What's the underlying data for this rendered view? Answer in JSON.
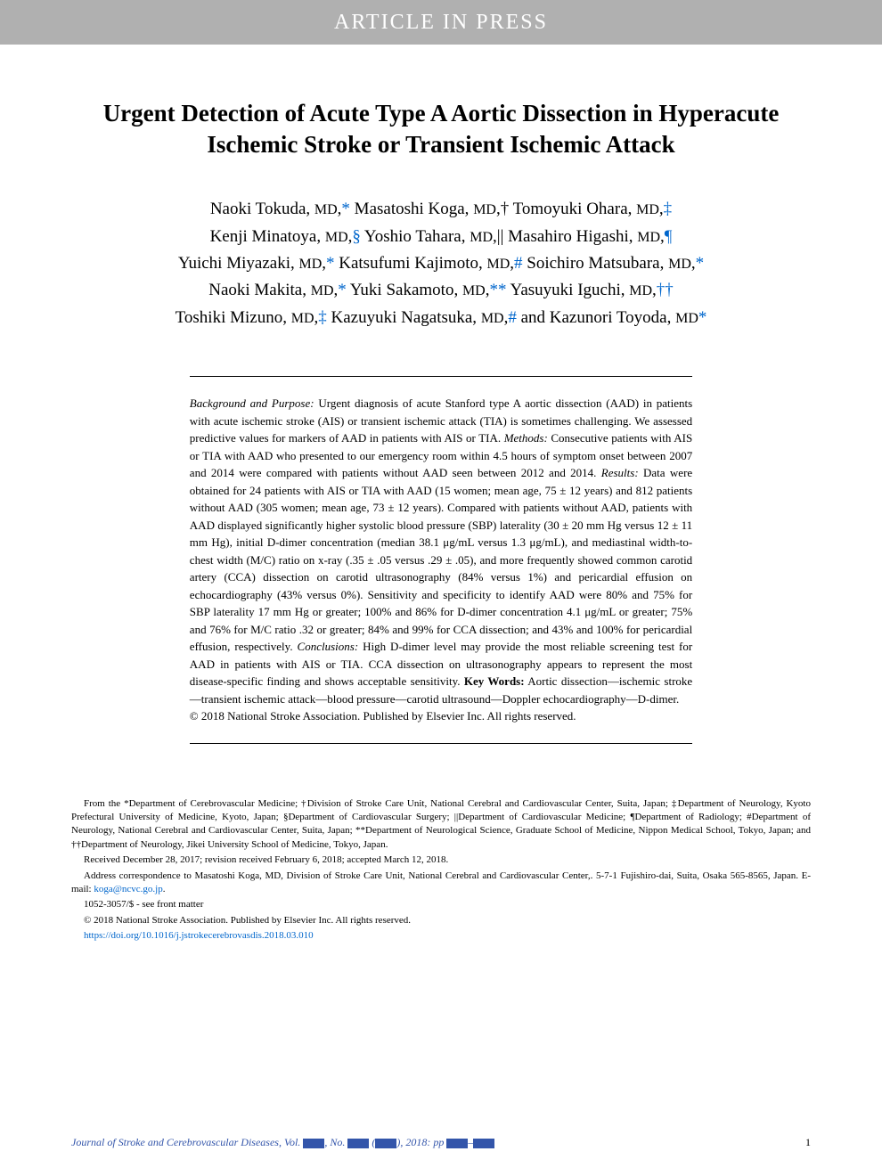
{
  "banner": {
    "text": "ARTICLE IN PRESS"
  },
  "title": "Urgent Detection of Acute Type A Aortic Dissection in Hyperacute Ischemic Stroke or Transient Ischemic Attack",
  "authors_html": "Naoki Tokuda, <span class='sc'>MD</span>,<span class='sym'>*</span> Masatoshi Koga, <span class='sc'>MD</span>,<span class='sym-black'>†</span> Tomoyuki Ohara, <span class='sc'>MD</span>,<span class='sym'>‡</span><br>Kenji Minatoya, <span class='sc'>MD</span>,<span class='sym'>§</span> Yoshio Tahara, <span class='sc'>MD</span>,<span class='sym-black'>||</span> Masahiro Higashi, <span class='sc'>MD</span>,<span class='sym'>¶</span><br>Yuichi Miyazaki, <span class='sc'>MD</span>,<span class='sym'>*</span> Katsufumi Kajimoto, <span class='sc'>MD</span>,<span class='sym'>#</span> Soichiro Matsubara, <span class='sc'>MD</span>,<span class='sym'>*</span><br>Naoki Makita, <span class='sc'>MD</span>,<span class='sym'>*</span> Yuki Sakamoto, <span class='sc'>MD</span>,<span class='sym'>**</span> Yasuyuki Iguchi, <span class='sc'>MD</span>,<span class='sym'>††</span><br>Toshiki Mizuno, <span class='sc'>MD</span>,<span class='sym'>‡</span> Kazuyuki Nagatsuka, <span class='sc'>MD</span>,<span class='sym'>#</span> and Kazunori Toyoda, <span class='sc'>MD</span><span class='sym'>*</span>",
  "abstract": "<span class='italic'>Background and Purpose:</span> Urgent diagnosis of acute Stanford type A aortic dissection (AAD) in patients with acute ischemic stroke (AIS) or transient ischemic attack (TIA) is sometimes challenging. We assessed predictive values for markers of AAD in patients with AIS or TIA. <span class='italic'>Methods:</span> Consecutive patients with AIS or TIA with AAD who presented to our emergency room within 4.5 hours of symptom onset between 2007 and 2014 were compared with patients without AAD seen between 2012 and 2014. <span class='italic'>Results:</span> Data were obtained for 24 patients with AIS or TIA with AAD (15 women; mean age, 75 ± 12 years) and 812 patients without AAD (305 women; mean age, 73 ± 12 years). Compared with patients without AAD, patients with AAD displayed significantly higher systolic blood pressure (SBP) laterality (30 ± 20 mm Hg versus 12 ± 11 mm Hg), initial D-dimer concentration (median 38.1 μg/mL versus 1.3 μg/mL), and mediastinal width-to-chest width (M/C) ratio on x-ray (.35 ± .05 versus .29 ± .05), and more frequently showed common carotid artery (CCA) dissection on carotid ultrasonography (84% versus 1%) and pericardial effusion on echocardiography (43% versus 0%). Sensitivity and specificity to identify AAD were 80% and 75% for SBP laterality 17 mm Hg or greater; 100% and 86% for D-dimer concentration 4.1 μg/mL or greater; 75% and 76% for M/C ratio .32 or greater; 84% and 99% for CCA dissection; and 43% and 100% for pericardial effusion, respectively. <span class='italic'>Conclusions:</span> High D-dimer level may provide the most reliable screening test for AAD in patients with AIS or TIA. CCA dissection on ultrasonography appears to represent the most disease-specific finding and shows acceptable sensitivity. <span class='bold'>Key Words:</span> Aortic dissection—ischemic stroke—transient ischemic attack—blood pressure—carotid ultrasound—Doppler echocardiography—D-dimer.<br>© 2018 National Stroke Association. Published by Elsevier Inc. All rights reserved.",
  "affiliations": "From the *Department of Cerebrovascular Medicine; †Division of Stroke Care Unit, National Cerebral and Cardiovascular Center, Suita, Japan; ‡Department of Neurology, Kyoto Prefectural University of Medicine, Kyoto, Japan; §Department of Cardiovascular Surgery; ||Department of Cardiovascular Medicine; ¶Department of Radiology; #Department of Neurology, National Cerebral and Cardiovascular Center, Suita, Japan; **Department of Neurological Science, Graduate School of Medicine, Nippon Medical School, Tokyo, Japan; and ††Department of Neurology, Jikei University School of Medicine, Tokyo, Japan.",
  "received": "Received December 28, 2017; revision received February 6, 2018; accepted March 12, 2018.",
  "correspondence_prefix": "Address correspondence to Masatoshi Koga, MD, Division of Stroke Care Unit, National Cerebral and Cardiovascular Center,. 5-7-1 Fujishiro-dai, Suita, Osaka 565-8565, Japan. E-mail: ",
  "correspondence_email": "koga@ncvc.go.jp",
  "issn": "1052-3057/$ - see front matter",
  "copyright": "© 2018 National Stroke Association. Published by Elsevier Inc. All rights reserved.",
  "doi": "https://doi.org/10.1016/j.jstrokecerebrovasdis.2018.03.010",
  "journal_footer": {
    "journal_name": "Journal of Stroke and Cerebrovascular Diseases",
    "vol_label": ", Vol. ",
    "no_label": ", No. ",
    "year_label": " (",
    "pages_label": "), 2018: pp ",
    "dash": "–",
    "page_number": "1"
  },
  "colors": {
    "banner_bg": "#b0b0b0",
    "banner_text": "#ffffff",
    "link": "#0066cc",
    "journal": "#3355aa",
    "text": "#000000",
    "bg": "#ffffff"
  },
  "typography": {
    "title_fontsize": 27,
    "authors_fontsize": 19,
    "abstract_fontsize": 13,
    "footer_fontsize": 11,
    "journal_footer_fontsize": 12,
    "font_family": "Georgia, Times New Roman, serif"
  }
}
